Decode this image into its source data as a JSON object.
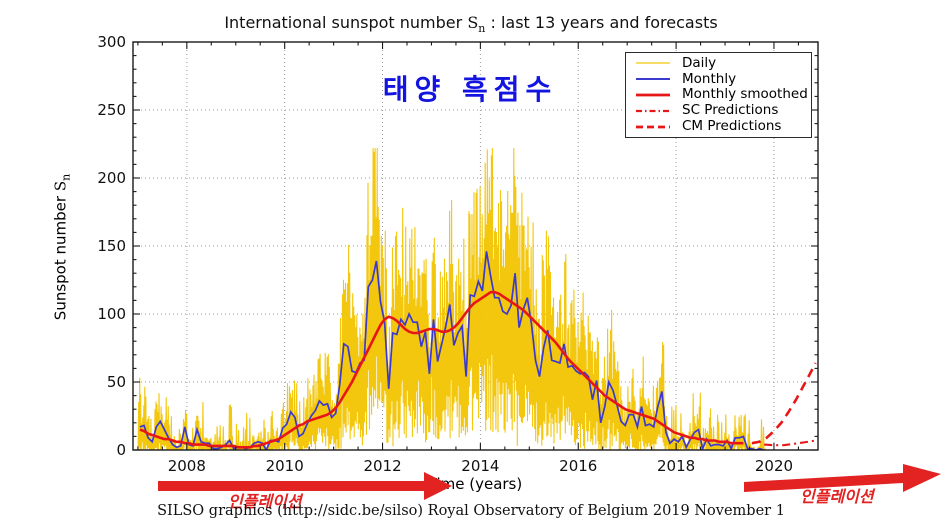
{
  "chart": {
    "title": {
      "prefix": "International sunspot number ",
      "sn_base": "S",
      "sn_sub": "n",
      "suffix": " : last 13 years and forecasts"
    },
    "y_label": {
      "prefix": "Sunspot number ",
      "sn_base": "S",
      "sn_sub": "n"
    },
    "x_label": "Time (years)"
  },
  "legend": {
    "items": [
      {
        "label": "Daily",
        "color": "#F5C60A",
        "dash": "solid",
        "width": 1.3
      },
      {
        "label": "Monthly",
        "color": "#3A3ACF",
        "dash": "solid",
        "width": 2.0
      },
      {
        "label": "Monthly smoothed",
        "color": "#E81717",
        "dash": "solid",
        "width": 2.8
      },
      {
        "label": "SC Predictions",
        "color": "#E81717",
        "dash": "dashdot",
        "width": 2.2
      },
      {
        "label": "CM Predictions",
        "color": "#E81717",
        "dash": "dashed",
        "width": 2.8
      }
    ]
  },
  "annotations": {
    "korean_title": {
      "text": "태양 흑점수",
      "color": "#1414E0"
    },
    "inflation_left": {
      "text": "인플레이션",
      "color": "#E32222"
    },
    "inflation_right": {
      "text": "인플레이션",
      "color": "#E32222"
    }
  },
  "caption": {
    "text": "SILSO graphics (http://sidc.be/silso)  Royal Observatory of Belgium  2019 November 1"
  },
  "colors": {
    "daily": "#F2C400",
    "monthly": "#3A3ACF",
    "smoothed": "#E81717",
    "predictions": "#E81717",
    "grid": "#9a9a9a",
    "axis": "#1a1a1a",
    "korean_blue": "#1414E0",
    "annotation_red": "#E32222"
  },
  "chart_data": {
    "type": "line",
    "title": "International sunspot number Sn : last 13 years and forecasts",
    "xlabel": "Time (years)",
    "ylabel": "Sunspot number Sn",
    "xlim": [
      2006.9,
      2020.9
    ],
    "ylim": [
      0,
      300
    ],
    "x_ticks": [
      2008,
      2010,
      2012,
      2014,
      2016,
      2018,
      2020
    ],
    "y_ticks": [
      0,
      50,
      100,
      150,
      200,
      250,
      300
    ],
    "x_minor_step": 0.5,
    "y_minor_step": 10,
    "grid": "dotted gray at major ticks",
    "legend_position": "upper right",
    "series": [
      {
        "name": "Daily",
        "color": "#F2C400",
        "style": "solid",
        "representation": "noisy daily hash scattered around the Monthly means; near 0 in 2008-2009 and 2018-2019, peaks up to ~220 during 2011-2014",
        "approx_max": 220,
        "x_end": 2019.83
      },
      {
        "name": "Monthly",
        "color": "#3A3ACF",
        "style": "solid",
        "x_start": 2007.042,
        "x_step": 0.083333,
        "values": [
          17,
          18,
          9,
          6,
          17,
          21,
          15,
          9,
          4,
          2,
          3,
          17,
          4,
          3,
          15,
          6,
          5,
          5,
          1,
          1,
          2,
          4,
          7,
          1,
          2,
          2,
          1,
          2,
          5,
          6,
          5,
          0,
          7,
          7,
          6,
          16,
          19,
          28,
          24,
          10,
          12,
          19,
          25,
          29,
          36,
          33,
          34,
          24,
          27,
          48,
          78,
          76,
          58,
          57,
          64,
          66,
          120,
          125,
          139,
          109,
          94,
          45,
          86,
          85,
          96,
          92,
          100,
          94,
          94,
          76,
          87,
          56,
          96,
          65,
          78,
          91,
          107,
          77,
          86,
          91,
          54,
          114,
          113,
          124,
          117,
          146,
          128,
          112,
          112,
          102,
          100,
          106,
          130,
          90,
          103,
          112,
          93,
          66,
          54,
          75,
          88,
          66,
          65,
          64,
          78,
          61,
          62,
          58,
          56,
          57,
          54,
          37,
          51,
          20,
          32,
          50,
          44,
          33,
          21,
          18,
          26,
          26,
          17,
          32,
          18,
          19,
          17,
          32,
          43,
          13,
          5,
          8,
          6,
          10,
          2,
          8,
          13,
          15,
          1,
          8,
          3,
          4,
          4,
          3,
          7,
          1,
          9,
          9,
          10,
          1,
          1,
          0,
          1,
          0
        ]
      },
      {
        "name": "Monthly smoothed",
        "color": "#E81717",
        "style": "solid",
        "x_start": 2007.042,
        "x_step": 0.083333,
        "values": [
          15,
          14,
          12,
          11,
          10,
          9,
          8,
          8,
          7,
          6,
          6,
          5,
          5,
          4,
          4,
          4,
          4,
          3,
          3,
          3,
          3,
          3,
          3,
          3,
          2,
          2,
          2,
          2,
          3,
          3,
          4,
          5,
          6,
          7,
          8,
          10,
          12,
          14,
          16,
          18,
          19,
          21,
          22,
          23,
          24,
          25,
          26,
          28,
          31,
          35,
          40,
          45,
          50,
          56,
          62,
          68,
          74,
          80,
          86,
          92,
          96,
          98,
          97,
          95,
          92,
          89,
          87,
          86,
          86,
          87,
          88,
          89,
          89,
          88,
          87,
          87,
          88,
          90,
          93,
          97,
          101,
          105,
          108,
          110,
          112,
          114,
          116,
          116,
          115,
          113,
          111,
          109,
          107,
          105,
          103,
          100,
          97,
          94,
          91,
          88,
          85,
          82,
          79,
          75,
          71,
          67,
          64,
          61,
          58,
          55,
          52,
          49,
          46,
          43,
          40,
          38,
          36,
          34,
          32,
          30,
          29,
          28,
          27,
          26,
          25,
          24,
          23,
          21,
          19,
          17,
          15,
          13,
          12,
          11,
          10,
          9,
          9,
          8,
          8,
          7,
          7,
          7,
          6,
          6,
          6,
          5,
          5,
          5,
          5
        ]
      },
      {
        "name": "SC Predictions",
        "color": "#E81717",
        "style": "dashdot",
        "points": [
          [
            2019.8,
            4
          ],
          [
            2020.0,
            3.5
          ],
          [
            2020.2,
            3.5
          ],
          [
            2020.4,
            4.5
          ],
          [
            2020.6,
            5.5
          ],
          [
            2020.85,
            7
          ]
        ]
      },
      {
        "name": "CM Predictions",
        "color": "#E81717",
        "style": "dashed",
        "points": [
          [
            2019.55,
            5
          ],
          [
            2019.7,
            6
          ],
          [
            2019.85,
            9
          ],
          [
            2020.0,
            14
          ],
          [
            2020.15,
            20
          ],
          [
            2020.3,
            28
          ],
          [
            2020.45,
            37
          ],
          [
            2020.6,
            47
          ],
          [
            2020.72,
            55
          ],
          [
            2020.85,
            64
          ]
        ]
      }
    ]
  }
}
